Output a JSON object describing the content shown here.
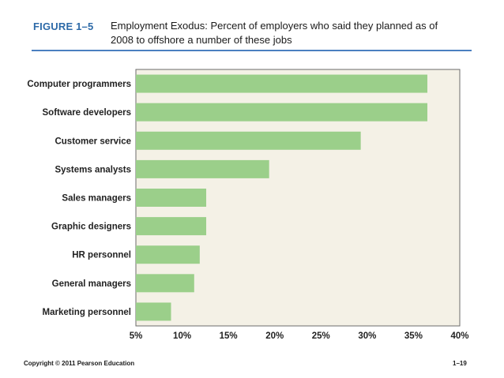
{
  "figure": {
    "label": "FIGURE 1–5",
    "caption": "Employment Exodus: Percent of employers who said they planned as of 2008 to offshore a number of these jobs"
  },
  "chart_data": {
    "type": "bar",
    "orientation": "horizontal",
    "title": "Employment Exodus: Percent of employers who said they planned as of 2008 to offshore a number of these jobs",
    "categories": [
      "Computer programmers",
      "Software developers",
      "Customer service",
      "Systems analysts",
      "Sales managers",
      "Graphic designers",
      "HR personnel",
      "General managers",
      "Marketing personnel"
    ],
    "values": [
      36.5,
      36.5,
      29.3,
      19.4,
      12.6,
      12.6,
      11.9,
      11.3,
      8.8
    ],
    "xlim": [
      5,
      40
    ],
    "xticks": [
      5,
      10,
      15,
      20,
      25,
      30,
      35,
      40
    ],
    "xtick_labels": [
      "5%",
      "10%",
      "15%",
      "20%",
      "25%",
      "30%",
      "35%",
      "40%"
    ],
    "xlabel": "",
    "ylabel": "",
    "bar_color": "#9bcf8a",
    "plot_background": "#f4f1e6",
    "grid": false,
    "legend": "none"
  },
  "footer": {
    "copyright": "Copyright © 2011 Pearson Education",
    "page": "1–19"
  }
}
